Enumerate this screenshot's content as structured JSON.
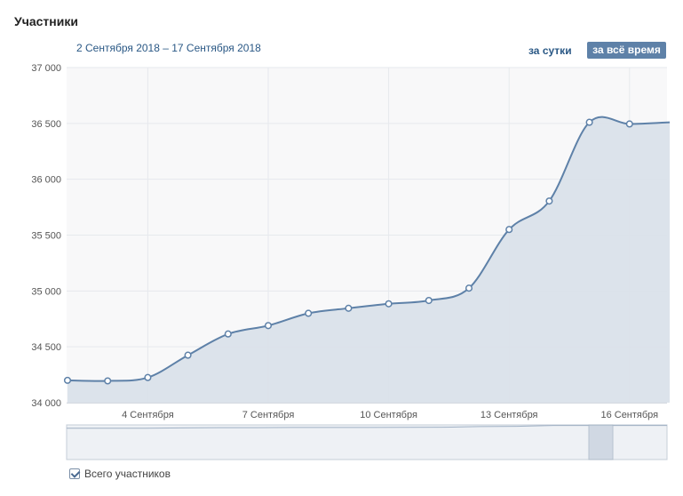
{
  "header": {
    "title": "Участники",
    "date_range": "2 Сентября 2018 – 17 Сентября 2018",
    "btn_day": "за сутки",
    "btn_all": "за всё время"
  },
  "legend": {
    "label": "Всего участников",
    "checked": true
  },
  "colors": {
    "line": "#5e81a8",
    "fill": "#dae1ea",
    "accent": "#5e81a8"
  },
  "chart_data": {
    "type": "area",
    "x": [
      "2 Сентября",
      "3 Сентября",
      "4 Сентября",
      "5 Сентября",
      "6 Сентября",
      "7 Сентября",
      "8 Сентября",
      "9 Сентября",
      "10 Сентября",
      "11 Сентября",
      "12 Сентября",
      "13 Сентября",
      "14 Сентября",
      "15 Сентября",
      "16 Сентября",
      "17 Сентября"
    ],
    "series": [
      {
        "values": [
          34200,
          34195,
          34225,
          34425,
          34615,
          34690,
          34800,
          34845,
          34885,
          34915,
          35025,
          35550,
          35805,
          36510,
          36495,
          36510
        ]
      }
    ],
    "x_ticks": [
      "4 Сентября",
      "7 Сентября",
      "10 Сентября",
      "13 Сентября",
      "16 Сентября"
    ],
    "y_ticks": [
      "34 000",
      "34 500",
      "35 000",
      "35 500",
      "36 000",
      "36 500",
      "37 000"
    ],
    "ylim": [
      34000,
      37000
    ],
    "grid": true
  }
}
